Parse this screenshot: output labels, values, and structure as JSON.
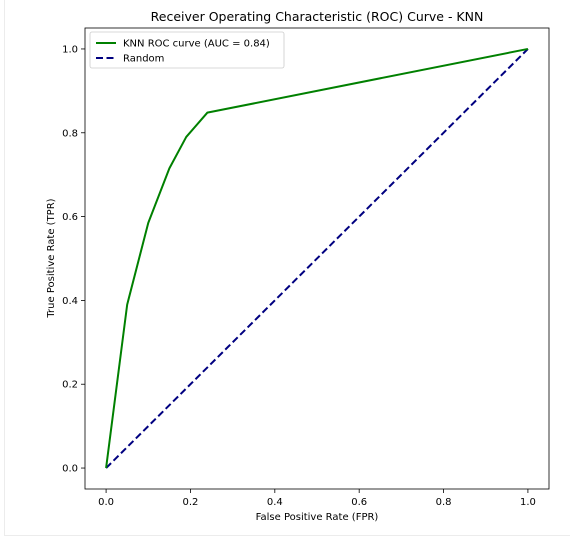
{
  "chart_data": {
    "type": "line",
    "title": "Receiver Operating Characteristic (ROC) Curve - KNN",
    "xlabel": "False Positive Rate (FPR)",
    "ylabel": "True Positive Rate (TPR)",
    "xlim": [
      -0.05,
      1.05
    ],
    "ylim": [
      -0.05,
      1.05
    ],
    "xticks": [
      0.0,
      0.2,
      0.4,
      0.6,
      0.8,
      1.0
    ],
    "yticks": [
      0.0,
      0.2,
      0.4,
      0.6,
      0.8,
      1.0
    ],
    "xtick_labels": [
      "0.0",
      "0.2",
      "0.4",
      "0.6",
      "0.8",
      "1.0"
    ],
    "ytick_labels": [
      "0.0",
      "0.2",
      "0.4",
      "0.6",
      "0.8",
      "1.0"
    ],
    "grid": false,
    "legend_position": "top-left",
    "series": [
      {
        "name": "KNN ROC curve (AUC = 0.84)",
        "color": "#008000",
        "style": "solid",
        "x": [
          0.0,
          0.05,
          0.1,
          0.15,
          0.19,
          0.24,
          1.0
        ],
        "y": [
          0.0,
          0.39,
          0.585,
          0.715,
          0.79,
          0.848,
          1.0
        ]
      },
      {
        "name": "Random",
        "color": "#000080",
        "style": "dashed",
        "x": [
          0.0,
          1.0
        ],
        "y": [
          0.0,
          1.0
        ]
      }
    ]
  }
}
